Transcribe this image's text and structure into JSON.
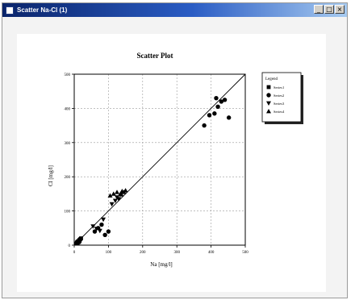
{
  "window": {
    "title": "Scatter Na-Cl (1)",
    "buttons": {
      "minimize": "_",
      "maximize": "□",
      "close": "×"
    }
  },
  "chart_data": {
    "type": "scatter",
    "title": "Scatter Plot",
    "xlabel": "Na [mg/l]",
    "ylabel": "Cl [mg/l]",
    "xlim": [
      0,
      500
    ],
    "ylim": [
      0,
      500
    ],
    "xticks": [
      "0",
      "100",
      "200",
      "300",
      "400",
      "500"
    ],
    "yticks": [
      "0",
      "100",
      "200",
      "300",
      "400",
      "500"
    ],
    "grid": true,
    "reference_line": "1:1",
    "legend": {
      "title": "Legend",
      "placement": "right",
      "entries": [
        "Series1",
        "Series2",
        "Series3",
        "Series4"
      ]
    },
    "series": [
      {
        "name": "Series1",
        "marker": "square",
        "points": [
          [
            5,
            5
          ],
          [
            8,
            8
          ],
          [
            10,
            10
          ],
          [
            12,
            12
          ],
          [
            15,
            15
          ],
          [
            18,
            18
          ],
          [
            10,
            6
          ],
          [
            20,
            20
          ],
          [
            14,
            9
          ],
          [
            16,
            13
          ]
        ]
      },
      {
        "name": "Series2",
        "marker": "circle",
        "points": [
          [
            60,
            40
          ],
          [
            70,
            50
          ],
          [
            80,
            60
          ],
          [
            90,
            30
          ],
          [
            100,
            40
          ],
          [
            380,
            350
          ],
          [
            395,
            380
          ],
          [
            410,
            385
          ],
          [
            420,
            405
          ],
          [
            430,
            420
          ],
          [
            415,
            430
          ],
          [
            440,
            425
          ],
          [
            452,
            373
          ]
        ]
      },
      {
        "name": "Series3",
        "marker": "triangle-down",
        "points": [
          [
            55,
            55
          ],
          [
            65,
            48
          ],
          [
            75,
            42
          ],
          [
            85,
            75
          ],
          [
            110,
            120
          ],
          [
            120,
            130
          ],
          [
            125,
            140
          ],
          [
            130,
            135
          ]
        ]
      },
      {
        "name": "Series4",
        "marker": "triangle-up",
        "points": [
          [
            105,
            145
          ],
          [
            115,
            150
          ],
          [
            125,
            155
          ],
          [
            135,
            150
          ],
          [
            140,
            158
          ],
          [
            145,
            155
          ],
          [
            150,
            160
          ],
          [
            138,
            148
          ]
        ]
      }
    ],
    "colors": {
      "marker": "#000000",
      "grid": "#9a9a9a",
      "background": "#ffffff"
    }
  }
}
